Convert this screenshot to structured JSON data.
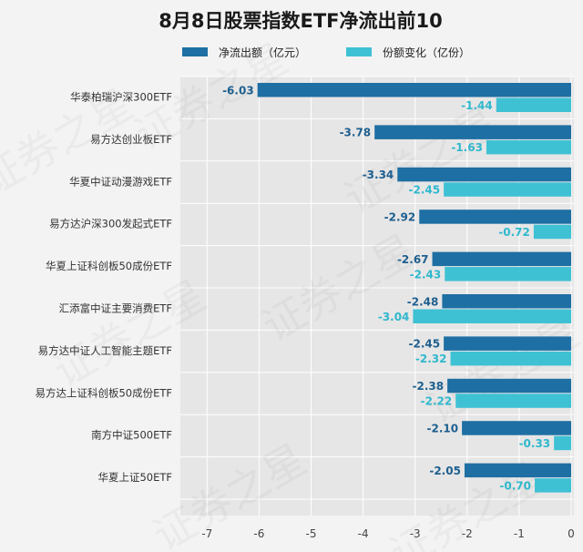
{
  "chart_data": {
    "type": "bar",
    "orientation": "horizontal",
    "title": "8月8日股票指数ETF净流出前10",
    "categories": [
      "华泰柏瑞沪深300ETF",
      "易方达创业板ETF",
      "华夏中证动漫游戏ETF",
      "易方达沪深300发起式ETF",
      "华夏上证科创板50成份ETF",
      "汇添富中证主要消费ETF",
      "易方达中证人工智能主题ETF",
      "易方达上证科创板50成份ETF",
      "南方中证500ETF",
      "华夏上证50ETF"
    ],
    "series": [
      {
        "name": "净流出额（亿元）",
        "color": "#1e6fa3",
        "values": [
          -6.03,
          -3.78,
          -3.34,
          -2.92,
          -2.67,
          -2.48,
          -2.45,
          -2.38,
          -2.1,
          -2.05
        ],
        "labels": [
          "-6.03",
          "-3.78",
          "-3.34",
          "-2.92",
          "-2.67",
          "-2.48",
          "-2.45",
          "-2.38",
          "-2.10",
          "-2.05"
        ]
      },
      {
        "name": "份额变化（亿份）",
        "color": "#3fc1d4",
        "values": [
          -1.44,
          -1.63,
          -2.45,
          -0.72,
          -2.43,
          -3.04,
          -2.32,
          -2.22,
          -0.33,
          -0.7
        ],
        "labels": [
          "-1.44",
          "-1.63",
          "-2.45",
          "-0.72",
          "-2.43",
          "-3.04",
          "-2.32",
          "-2.22",
          "-0.33",
          "-0.70"
        ]
      }
    ],
    "xlim": [
      -7.5,
      0
    ],
    "xticks": [
      -7,
      -6,
      -5,
      -4,
      -3,
      -2,
      -1,
      0
    ],
    "xtick_labels": [
      "-7",
      "-6",
      "-5",
      "-4",
      "-3",
      "-2",
      "-1",
      "0"
    ],
    "grid": true,
    "legend_position": "top",
    "watermark": "证券之星"
  }
}
